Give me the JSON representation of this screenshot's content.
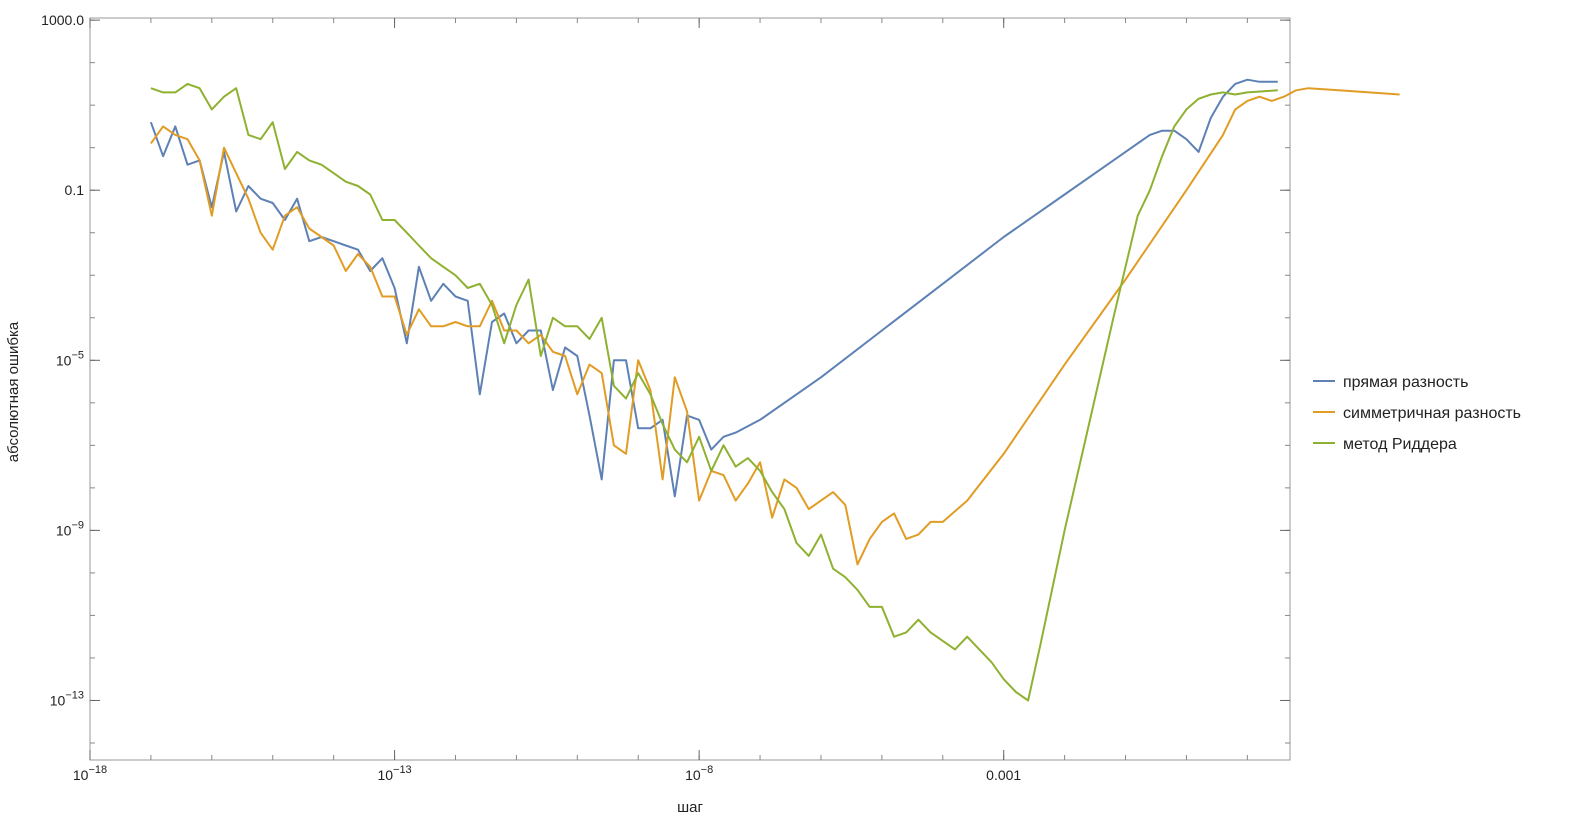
{
  "chart_data": {
    "type": "line",
    "title": "",
    "xlabel": "шаг",
    "ylabel": "абсолютная ошибка",
    "xscale": "log",
    "yscale": "log",
    "xlim_log10": [
      -18,
      1.7
    ],
    "ylim_log10": [
      -14.4,
      3.05
    ],
    "x_ticks": [
      {
        "exp": -18,
        "base": "10",
        "sup": "−18"
      },
      {
        "exp": -13,
        "base": "10",
        "sup": "−13"
      },
      {
        "exp": -8,
        "base": "10",
        "sup": "−8"
      },
      {
        "exp": -3,
        "base": "0.001",
        "sup": ""
      }
    ],
    "y_ticks": [
      {
        "exp": 3,
        "base": "1000.0",
        "sup": ""
      },
      {
        "exp": -1,
        "base": "0.1",
        "sup": ""
      },
      {
        "exp": -5,
        "base": "10",
        "sup": "−5"
      },
      {
        "exp": -9,
        "base": "10",
        "sup": "−9"
      },
      {
        "exp": -13,
        "base": "10",
        "sup": "−13"
      }
    ],
    "grid": false,
    "legend_position": "right",
    "series": [
      {
        "name": "прямая разность",
        "color": "#5E81B5",
        "points": [
          [
            -17.0,
            0.6
          ],
          [
            -16.8,
            -0.2
          ],
          [
            -16.6,
            0.5
          ],
          [
            -16.4,
            -0.4
          ],
          [
            -16.2,
            -0.3
          ],
          [
            -16.0,
            -1.4
          ],
          [
            -15.8,
            -0.1
          ],
          [
            -15.6,
            -1.5
          ],
          [
            -15.4,
            -0.9
          ],
          [
            -15.2,
            -1.2
          ],
          [
            -15.0,
            -1.3
          ],
          [
            -14.8,
            -1.7
          ],
          [
            -14.6,
            -1.2
          ],
          [
            -14.4,
            -2.2
          ],
          [
            -14.2,
            -2.1
          ],
          [
            -14.0,
            -2.2
          ],
          [
            -13.8,
            -2.3
          ],
          [
            -13.6,
            -2.4
          ],
          [
            -13.4,
            -2.9
          ],
          [
            -13.2,
            -2.6
          ],
          [
            -13.0,
            -3.3
          ],
          [
            -12.8,
            -4.6
          ],
          [
            -12.6,
            -2.8
          ],
          [
            -12.4,
            -3.6
          ],
          [
            -12.2,
            -3.2
          ],
          [
            -12.0,
            -3.5
          ],
          [
            -11.8,
            -3.6
          ],
          [
            -11.6,
            -5.8
          ],
          [
            -11.4,
            -4.1
          ],
          [
            -11.2,
            -3.9
          ],
          [
            -11.0,
            -4.6
          ],
          [
            -10.8,
            -4.3
          ],
          [
            -10.6,
            -4.3
          ],
          [
            -10.4,
            -5.7
          ],
          [
            -10.2,
            -4.7
          ],
          [
            -10.0,
            -4.9
          ],
          [
            -9.8,
            -6.3
          ],
          [
            -9.6,
            -7.8
          ],
          [
            -9.4,
            -5.0
          ],
          [
            -9.2,
            -5.0
          ],
          [
            -9.0,
            -6.6
          ],
          [
            -8.8,
            -6.6
          ],
          [
            -8.6,
            -6.4
          ],
          [
            -8.4,
            -8.2
          ],
          [
            -8.2,
            -6.3
          ],
          [
            -8.0,
            -6.4
          ],
          [
            -7.8,
            -7.1
          ],
          [
            -7.6,
            -6.8
          ],
          [
            -7.4,
            -6.7
          ],
          [
            -7.0,
            -6.4
          ],
          [
            -6.0,
            -5.4
          ],
          [
            -5.0,
            -4.3
          ],
          [
            -4.0,
            -3.2
          ],
          [
            -3.0,
            -2.1
          ],
          [
            -2.0,
            -1.1
          ],
          [
            -1.5,
            -0.6
          ],
          [
            -1.0,
            -0.1
          ],
          [
            -0.6,
            0.3
          ],
          [
            -0.4,
            0.4
          ],
          [
            -0.2,
            0.4
          ],
          [
            0.0,
            0.2
          ],
          [
            0.2,
            -0.1
          ],
          [
            0.4,
            0.7
          ],
          [
            0.6,
            1.2
          ],
          [
            0.8,
            1.5
          ],
          [
            1.0,
            1.6
          ],
          [
            1.2,
            1.55
          ],
          [
            1.5,
            1.55
          ]
        ]
      },
      {
        "name": "симметричная разность",
        "color": "#E19C24",
        "points": [
          [
            -17.0,
            0.1
          ],
          [
            -16.8,
            0.5
          ],
          [
            -16.6,
            0.3
          ],
          [
            -16.4,
            0.2
          ],
          [
            -16.2,
            -0.3
          ],
          [
            -16.0,
            -1.6
          ],
          [
            -15.8,
            0.0
          ],
          [
            -15.6,
            -0.6
          ],
          [
            -15.4,
            -1.2
          ],
          [
            -15.2,
            -2.0
          ],
          [
            -15.0,
            -2.4
          ],
          [
            -14.8,
            -1.6
          ],
          [
            -14.6,
            -1.4
          ],
          [
            -14.4,
            -1.9
          ],
          [
            -14.2,
            -2.1
          ],
          [
            -14.0,
            -2.3
          ],
          [
            -13.8,
            -2.9
          ],
          [
            -13.6,
            -2.5
          ],
          [
            -13.4,
            -2.8
          ],
          [
            -13.2,
            -3.5
          ],
          [
            -13.0,
            -3.5
          ],
          [
            -12.8,
            -4.4
          ],
          [
            -12.6,
            -3.8
          ],
          [
            -12.4,
            -4.2
          ],
          [
            -12.2,
            -4.2
          ],
          [
            -12.0,
            -4.1
          ],
          [
            -11.8,
            -4.2
          ],
          [
            -11.6,
            -4.2
          ],
          [
            -11.4,
            -3.6
          ],
          [
            -11.2,
            -4.3
          ],
          [
            -11.0,
            -4.3
          ],
          [
            -10.8,
            -4.6
          ],
          [
            -10.6,
            -4.4
          ],
          [
            -10.4,
            -4.8
          ],
          [
            -10.2,
            -4.9
          ],
          [
            -10.0,
            -5.8
          ],
          [
            -9.8,
            -5.1
          ],
          [
            -9.6,
            -5.3
          ],
          [
            -9.4,
            -7.0
          ],
          [
            -9.2,
            -7.2
          ],
          [
            -9.0,
            -5.0
          ],
          [
            -8.8,
            -5.7
          ],
          [
            -8.6,
            -7.8
          ],
          [
            -8.4,
            -5.4
          ],
          [
            -8.2,
            -6.2
          ],
          [
            -8.0,
            -8.3
          ],
          [
            -7.8,
            -7.6
          ],
          [
            -7.6,
            -7.7
          ],
          [
            -7.4,
            -8.3
          ],
          [
            -7.2,
            -7.9
          ],
          [
            -7.0,
            -7.4
          ],
          [
            -6.8,
            -8.7
          ],
          [
            -6.6,
            -7.8
          ],
          [
            -6.4,
            -8.0
          ],
          [
            -6.2,
            -8.5
          ],
          [
            -6.0,
            -8.3
          ],
          [
            -5.8,
            -8.1
          ],
          [
            -5.6,
            -8.4
          ],
          [
            -5.4,
            -9.8
          ],
          [
            -5.2,
            -9.2
          ],
          [
            -5.0,
            -8.8
          ],
          [
            -4.8,
            -8.6
          ],
          [
            -4.6,
            -9.2
          ],
          [
            -4.4,
            -9.1
          ],
          [
            -4.2,
            -8.8
          ],
          [
            -4.0,
            -8.8
          ],
          [
            -3.6,
            -8.3
          ],
          [
            -3.0,
            -7.2
          ],
          [
            -2.0,
            -5.1
          ],
          [
            -1.0,
            -3.1
          ],
          [
            0.0,
            -1.0
          ],
          [
            0.6,
            0.3
          ],
          [
            0.8,
            0.9
          ],
          [
            1.0,
            1.1
          ],
          [
            1.2,
            1.2
          ],
          [
            1.4,
            1.1
          ],
          [
            1.6,
            1.2
          ],
          [
            1.8,
            1.35
          ],
          [
            2.0,
            1.4
          ],
          [
            2.5,
            1.35
          ],
          [
            3.0,
            1.3
          ],
          [
            3.5,
            1.25
          ]
        ]
      },
      {
        "name": "метод Риддера",
        "color": "#8FB131",
        "points": [
          [
            -17.0,
            1.4
          ],
          [
            -16.8,
            1.3
          ],
          [
            -16.6,
            1.3
          ],
          [
            -16.4,
            1.5
          ],
          [
            -16.2,
            1.4
          ],
          [
            -16.0,
            0.9
          ],
          [
            -15.8,
            1.2
          ],
          [
            -15.6,
            1.4
          ],
          [
            -15.4,
            0.3
          ],
          [
            -15.2,
            0.2
          ],
          [
            -15.0,
            0.6
          ],
          [
            -14.8,
            -0.5
          ],
          [
            -14.6,
            -0.1
          ],
          [
            -14.4,
            -0.3
          ],
          [
            -14.2,
            -0.4
          ],
          [
            -14.0,
            -0.6
          ],
          [
            -13.8,
            -0.8
          ],
          [
            -13.6,
            -0.9
          ],
          [
            -13.4,
            -1.1
          ],
          [
            -13.2,
            -1.7
          ],
          [
            -13.0,
            -1.7
          ],
          [
            -12.8,
            -2.0
          ],
          [
            -12.6,
            -2.3
          ],
          [
            -12.4,
            -2.6
          ],
          [
            -12.2,
            -2.8
          ],
          [
            -12.0,
            -3.0
          ],
          [
            -11.8,
            -3.3
          ],
          [
            -11.6,
            -3.2
          ],
          [
            -11.4,
            -3.7
          ],
          [
            -11.2,
            -4.6
          ],
          [
            -11.0,
            -3.7
          ],
          [
            -10.8,
            -3.1
          ],
          [
            -10.6,
            -4.9
          ],
          [
            -10.4,
            -4.0
          ],
          [
            -10.2,
            -4.2
          ],
          [
            -10.0,
            -4.2
          ],
          [
            -9.8,
            -4.5
          ],
          [
            -9.6,
            -4.0
          ],
          [
            -9.4,
            -5.6
          ],
          [
            -9.2,
            -5.9
          ],
          [
            -9.0,
            -5.3
          ],
          [
            -8.8,
            -5.8
          ],
          [
            -8.6,
            -6.5
          ],
          [
            -8.4,
            -7.1
          ],
          [
            -8.2,
            -7.4
          ],
          [
            -8.0,
            -6.8
          ],
          [
            -7.8,
            -7.6
          ],
          [
            -7.6,
            -7.0
          ],
          [
            -7.4,
            -7.5
          ],
          [
            -7.2,
            -7.3
          ],
          [
            -7.0,
            -7.6
          ],
          [
            -6.8,
            -8.1
          ],
          [
            -6.6,
            -8.5
          ],
          [
            -6.4,
            -9.3
          ],
          [
            -6.2,
            -9.6
          ],
          [
            -6.0,
            -9.1
          ],
          [
            -5.8,
            -9.9
          ],
          [
            -5.6,
            -10.1
          ],
          [
            -5.4,
            -10.4
          ],
          [
            -5.2,
            -10.8
          ],
          [
            -5.0,
            -10.8
          ],
          [
            -4.8,
            -11.5
          ],
          [
            -4.6,
            -11.4
          ],
          [
            -4.4,
            -11.1
          ],
          [
            -4.2,
            -11.4
          ],
          [
            -4.0,
            -11.6
          ],
          [
            -3.8,
            -11.8
          ],
          [
            -3.6,
            -11.5
          ],
          [
            -3.4,
            -11.8
          ],
          [
            -3.2,
            -12.1
          ],
          [
            -3.0,
            -12.5
          ],
          [
            -2.8,
            -12.8
          ],
          [
            -2.6,
            -13.0
          ],
          [
            -2.4,
            -11.7
          ],
          [
            -2.0,
            -9.0
          ],
          [
            -1.6,
            -6.5
          ],
          [
            -1.2,
            -4.0
          ],
          [
            -1.0,
            -2.8
          ],
          [
            -0.8,
            -1.6
          ],
          [
            -0.6,
            -1.0
          ],
          [
            -0.4,
            -0.2
          ],
          [
            -0.2,
            0.5
          ],
          [
            0.0,
            0.9
          ],
          [
            0.2,
            1.15
          ],
          [
            0.4,
            1.25
          ],
          [
            0.6,
            1.3
          ],
          [
            0.8,
            1.25
          ],
          [
            1.0,
            1.3
          ],
          [
            1.5,
            1.35
          ]
        ]
      }
    ]
  }
}
